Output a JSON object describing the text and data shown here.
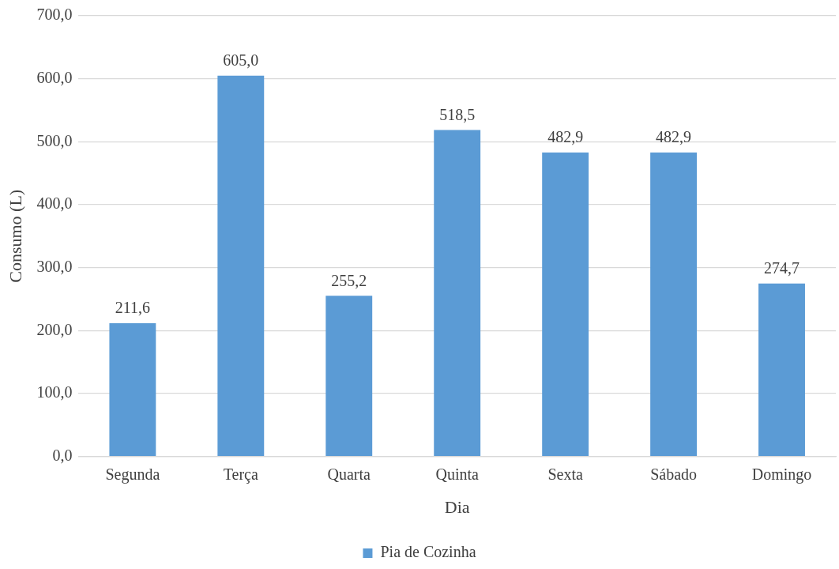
{
  "chart_data": {
    "type": "bar",
    "categories": [
      "Segunda",
      "Terça",
      "Quarta",
      "Quinta",
      "Sexta",
      "Sábado",
      "Domingo"
    ],
    "series": [
      {
        "name": "Pia de Cozinha",
        "color": "#5b9bd5",
        "values": [
          211.6,
          605.0,
          255.2,
          518.5,
          482.9,
          482.9,
          274.7
        ],
        "value_labels": [
          "211,6",
          "605,0",
          "255,2",
          "518,5",
          "482,9",
          "482,9",
          "274,7"
        ]
      }
    ],
    "xlabel": "Dia",
    "ylabel": "Consumo (L)",
    "ylim": [
      0,
      700
    ],
    "yticks": [
      {
        "value": 0,
        "label": "0,0"
      },
      {
        "value": 100,
        "label": "100,0"
      },
      {
        "value": 200,
        "label": "200,0"
      },
      {
        "value": 300,
        "label": "300,0"
      },
      {
        "value": 400,
        "label": "400,0"
      },
      {
        "value": 500,
        "label": "500,0"
      },
      {
        "value": 600,
        "label": "600,0"
      },
      {
        "value": 700,
        "label": "700,0"
      }
    ],
    "grid": "y",
    "legend": "bottom"
  }
}
